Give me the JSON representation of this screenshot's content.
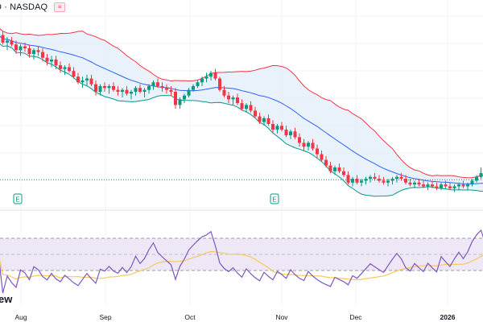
{
  "header": {
    "title": "D · NASDAQ",
    "menu_icon": "menu-lines-icon"
  },
  "watermark_text": "ew",
  "time_axis_labels": [
    "Aug",
    "Sep",
    "Oct",
    "Nov",
    "Dec",
    "2026"
  ],
  "earnings_marker_label": "E",
  "colors": {
    "up": "#089981",
    "down": "#f23645",
    "bb_basis": "#2962ff",
    "bb_upper": "#f23645",
    "bb_lower": "#089981",
    "bb_fill": "#e3effa",
    "rsi_line": "#7e57c2",
    "rsi_ma": "#f7c95c",
    "rsi_band": "#ede7f6",
    "price_line": "#089981"
  },
  "chart_data": [
    {
      "type": "candlestick",
      "indicators": [
        "Bollinger Bands"
      ],
      "x_axis": {
        "labels": [
          "Aug",
          "Sep",
          "Oct",
          "Nov",
          "Dec",
          "2026"
        ]
      },
      "y_range": [
        0,
        100
      ],
      "current_price_line": 13.5,
      "earnings_markers": [
        "early Aug",
        "late Oct"
      ],
      "candles": [
        [
          92,
          95,
          88,
          90
        ],
        [
          90,
          92,
          85,
          86
        ],
        [
          86,
          89,
          82,
          87
        ],
        [
          87,
          89,
          84,
          85
        ],
        [
          85,
          87,
          80,
          82
        ],
        [
          82,
          85,
          79,
          84
        ],
        [
          84,
          86,
          81,
          83
        ],
        [
          83,
          85,
          78,
          80
        ],
        [
          80,
          83,
          77,
          82
        ],
        [
          82,
          84,
          79,
          81
        ],
        [
          81,
          83,
          76,
          78
        ],
        [
          78,
          80,
          74,
          76
        ],
        [
          76,
          79,
          73,
          77
        ],
        [
          77,
          79,
          72,
          74
        ],
        [
          74,
          76,
          70,
          72
        ],
        [
          72,
          74,
          69,
          73
        ],
        [
          73,
          75,
          70,
          71
        ],
        [
          71,
          73,
          67,
          68
        ],
        [
          68,
          70,
          64,
          65
        ],
        [
          65,
          68,
          62,
          66
        ],
        [
          66,
          69,
          63,
          67
        ],
        [
          67,
          69,
          63,
          64
        ],
        [
          64,
          66,
          58,
          60
        ],
        [
          60,
          64,
          58,
          63
        ],
        [
          63,
          65,
          60,
          62
        ],
        [
          62,
          64,
          59,
          63
        ],
        [
          63,
          65,
          60,
          61
        ],
        [
          61,
          63,
          58,
          60
        ],
        [
          60,
          62,
          57,
          61
        ],
        [
          61,
          63,
          58,
          59
        ],
        [
          59,
          61,
          56,
          60
        ],
        [
          60,
          63,
          58,
          62
        ],
        [
          62,
          64,
          59,
          60
        ],
        [
          60,
          62,
          57,
          61
        ],
        [
          61,
          64,
          59,
          63
        ],
        [
          63,
          66,
          61,
          65
        ],
        [
          65,
          67,
          62,
          63
        ],
        [
          63,
          65,
          60,
          62
        ],
        [
          62,
          64,
          59,
          61
        ],
        [
          61,
          63,
          58,
          60
        ],
        [
          60,
          62,
          51,
          53
        ],
        [
          53,
          57,
          51,
          56
        ],
        [
          56,
          59,
          54,
          58
        ],
        [
          58,
          62,
          57,
          61
        ],
        [
          61,
          64,
          60,
          63
        ],
        [
          63,
          66,
          62,
          65
        ],
        [
          65,
          68,
          63,
          67
        ],
        [
          67,
          70,
          65,
          68
        ],
        [
          68,
          71,
          66,
          70
        ],
        [
          70,
          72,
          66,
          67
        ],
        [
          67,
          68,
          60,
          61
        ],
        [
          61,
          63,
          57,
          58
        ],
        [
          58,
          60,
          54,
          56
        ],
        [
          56,
          58,
          53,
          57
        ],
        [
          57,
          59,
          53,
          54
        ],
        [
          54,
          56,
          50,
          51
        ],
        [
          51,
          54,
          49,
          53
        ],
        [
          53,
          55,
          49,
          50
        ],
        [
          50,
          52,
          46,
          47
        ],
        [
          47,
          49,
          43,
          44
        ],
        [
          44,
          47,
          42,
          46
        ],
        [
          46,
          48,
          42,
          43
        ],
        [
          43,
          45,
          38,
          40
        ],
        [
          40,
          43,
          38,
          42
        ],
        [
          42,
          44,
          39,
          40
        ],
        [
          40,
          42,
          36,
          37
        ],
        [
          37,
          40,
          35,
          39
        ],
        [
          39,
          41,
          35,
          36
        ],
        [
          36,
          38,
          31,
          33
        ],
        [
          33,
          35,
          29,
          31
        ],
        [
          31,
          34,
          29,
          33
        ],
        [
          33,
          35,
          29,
          30
        ],
        [
          30,
          32,
          25,
          27
        ],
        [
          27,
          29,
          23,
          24
        ],
        [
          24,
          26,
          20,
          21
        ],
        [
          21,
          23,
          17,
          18
        ],
        [
          18,
          21,
          16,
          20
        ],
        [
          20,
          22,
          17,
          18
        ],
        [
          18,
          20,
          15,
          16
        ],
        [
          16,
          18,
          11,
          12
        ],
        [
          12,
          15,
          10,
          14
        ],
        [
          14,
          16,
          11,
          12
        ],
        [
          12,
          14,
          10,
          13
        ],
        [
          13,
          15,
          11,
          14
        ],
        [
          14,
          16,
          12,
          15
        ],
        [
          15,
          17,
          13,
          14
        ],
        [
          14,
          16,
          12,
          13
        ],
        [
          13,
          15,
          11,
          12
        ],
        [
          12,
          14,
          10,
          13
        ],
        [
          13,
          15,
          11,
          14
        ],
        [
          14,
          16,
          12,
          15
        ],
        [
          15,
          17,
          13,
          14
        ],
        [
          14,
          16,
          11,
          12
        ],
        [
          12,
          14,
          10,
          11
        ],
        [
          11,
          13,
          9,
          12
        ],
        [
          12,
          14,
          10,
          11
        ],
        [
          11,
          13,
          9,
          10
        ],
        [
          10,
          12,
          8,
          11
        ],
        [
          11,
          13,
          9,
          10
        ],
        [
          10,
          12,
          8,
          9
        ],
        [
          9,
          12,
          8,
          11
        ],
        [
          11,
          13,
          9,
          10
        ],
        [
          10,
          12,
          8,
          9
        ],
        [
          9,
          11,
          7,
          10
        ],
        [
          10,
          12,
          8,
          11
        ],
        [
          11,
          13,
          9,
          10
        ],
        [
          10,
          12,
          8,
          11
        ],
        [
          11,
          14,
          10,
          13
        ],
        [
          13,
          16,
          12,
          15
        ],
        [
          15,
          20,
          14,
          17
        ],
        [
          17,
          19,
          14,
          15
        ]
      ]
    },
    {
      "type": "line",
      "name": "RSI",
      "y_range": [
        0,
        100
      ],
      "bands": [
        30,
        70
      ],
      "midline": 50
    }
  ]
}
